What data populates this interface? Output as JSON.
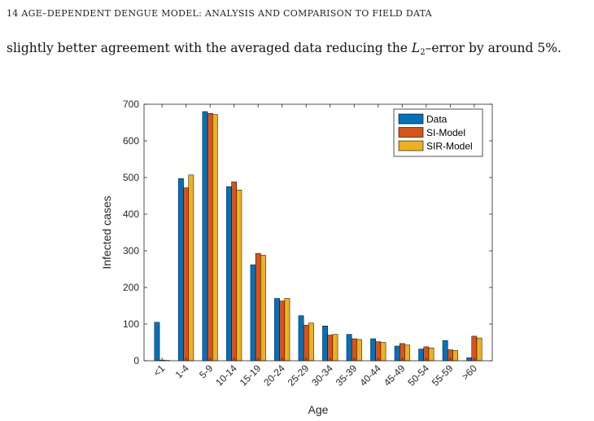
{
  "header": {
    "text": "14 AGE–DEPENDENT DENGUE MODEL: ANALYSIS AND COMPARISON TO FIELD DATA"
  },
  "paragraph": {
    "before": "slightly better agreement with the averaged data reducing the ",
    "math_base": "L",
    "math_sub": "2",
    "after": "–error by around 5%."
  },
  "chart_data": {
    "type": "bar",
    "categories": [
      "<1",
      "1-4",
      "5-9",
      "10-14",
      "15-19",
      "20-24",
      "25-29",
      "30-34",
      "35-39",
      "40-44",
      "45-49",
      "50-54",
      "55-59",
      ">60"
    ],
    "series": [
      {
        "name": "Data",
        "color": "#0072BD",
        "values": [
          105,
          497,
          680,
          475,
          262,
          170,
          123,
          95,
          72,
          60,
          40,
          32,
          55,
          8
        ]
      },
      {
        "name": "SI-Model",
        "color": "#D95319",
        "values": [
          2,
          472,
          675,
          488,
          293,
          163,
          97,
          70,
          60,
          52,
          47,
          38,
          30,
          67
        ]
      },
      {
        "name": "SIR-Model",
        "color": "#EDB120",
        "values": [
          1,
          507,
          672,
          466,
          288,
          170,
          103,
          72,
          58,
          50,
          43,
          35,
          28,
          62
        ]
      }
    ],
    "xlabel": "Age",
    "ylabel": "Infected cases",
    "ylim": [
      0,
      700
    ],
    "yticks": [
      "0",
      "100",
      "200",
      "300",
      "400",
      "500",
      "600",
      "700"
    ],
    "legend_position": "top-right",
    "grid": false
  }
}
